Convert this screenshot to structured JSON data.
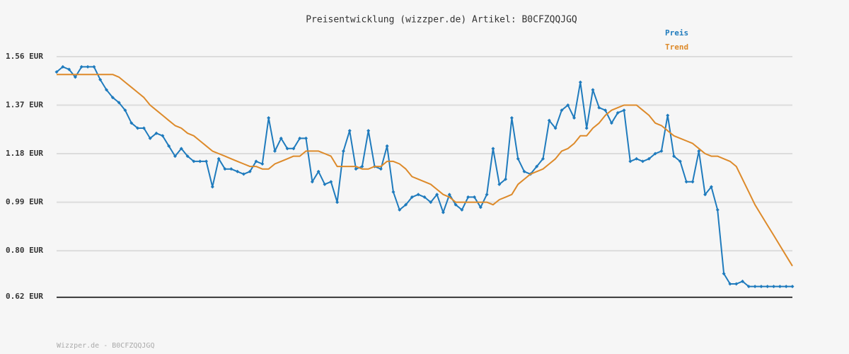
{
  "chart_data": {
    "type": "line",
    "title": "Preisentwicklung (wizzper.de) Artikel: B0CFZQQJGQ",
    "footer": "Wizzper.de - B0CFZQQJGQ",
    "ylim": [
      0.62,
      1.56
    ],
    "yticks": [
      {
        "value": 0.62,
        "label": "0.62 EUR"
      },
      {
        "value": 0.8,
        "label": "0.80 EUR"
      },
      {
        "value": 0.99,
        "label": "0.99 EUR"
      },
      {
        "value": 1.18,
        "label": "1.18 EUR"
      },
      {
        "value": 1.37,
        "label": "1.37 EUR"
      },
      {
        "value": 1.56,
        "label": "1.56 EUR"
      }
    ],
    "grid": true,
    "legend": "top-right",
    "series": [
      {
        "name": "Preis",
        "color": "#1f7bbd",
        "markers": true,
        "values": [
          1.5,
          1.52,
          1.51,
          1.48,
          1.52,
          1.52,
          1.52,
          1.47,
          1.43,
          1.4,
          1.38,
          1.35,
          1.3,
          1.28,
          1.28,
          1.24,
          1.26,
          1.25,
          1.21,
          1.17,
          1.2,
          1.17,
          1.15,
          1.15,
          1.15,
          1.05,
          1.16,
          1.12,
          1.12,
          1.11,
          1.1,
          1.11,
          1.15,
          1.14,
          1.32,
          1.19,
          1.24,
          1.2,
          1.2,
          1.24,
          1.24,
          1.07,
          1.11,
          1.06,
          1.07,
          0.99,
          1.19,
          1.27,
          1.12,
          1.13,
          1.27,
          1.13,
          1.12,
          1.21,
          1.03,
          0.96,
          0.98,
          1.01,
          1.02,
          1.01,
          0.99,
          1.02,
          0.95,
          1.02,
          0.98,
          0.96,
          1.01,
          1.01,
          0.97,
          1.02,
          1.2,
          1.06,
          1.08,
          1.32,
          1.16,
          1.11,
          1.1,
          1.13,
          1.16,
          1.31,
          1.28,
          1.35,
          1.37,
          1.32,
          1.46,
          1.28,
          1.43,
          1.36,
          1.35,
          1.3,
          1.34,
          1.35,
          1.15,
          1.16,
          1.15,
          1.16,
          1.18,
          1.19,
          1.33,
          1.17,
          1.15,
          1.07,
          1.07,
          1.19,
          1.02,
          1.05,
          0.96,
          0.71,
          0.67,
          0.67,
          0.68,
          0.66,
          0.66,
          0.66,
          0.66,
          0.66,
          0.66,
          0.66,
          0.66
        ]
      },
      {
        "name": "Trend",
        "color": "#dd8a2a",
        "markers": false,
        "values": [
          1.49,
          1.49,
          1.49,
          1.49,
          1.49,
          1.49,
          1.49,
          1.49,
          1.49,
          1.49,
          1.48,
          1.46,
          1.44,
          1.42,
          1.4,
          1.37,
          1.35,
          1.33,
          1.31,
          1.29,
          1.28,
          1.26,
          1.25,
          1.23,
          1.21,
          1.19,
          1.18,
          1.17,
          1.16,
          1.15,
          1.14,
          1.13,
          1.13,
          1.12,
          1.12,
          1.14,
          1.15,
          1.16,
          1.17,
          1.17,
          1.19,
          1.19,
          1.19,
          1.18,
          1.17,
          1.13,
          1.13,
          1.13,
          1.13,
          1.12,
          1.12,
          1.13,
          1.13,
          1.15,
          1.15,
          1.14,
          1.12,
          1.09,
          1.08,
          1.07,
          1.06,
          1.04,
          1.02,
          1.01,
          0.99,
          0.99,
          0.99,
          0.99,
          0.99,
          0.99,
          0.98,
          1.0,
          1.01,
          1.02,
          1.06,
          1.08,
          1.1,
          1.11,
          1.12,
          1.14,
          1.16,
          1.19,
          1.2,
          1.22,
          1.25,
          1.25,
          1.28,
          1.3,
          1.33,
          1.35,
          1.36,
          1.37,
          1.37,
          1.37,
          1.35,
          1.33,
          1.3,
          1.29,
          1.27,
          1.25,
          1.24,
          1.23,
          1.22,
          1.2,
          1.18,
          1.17,
          1.17,
          1.16,
          1.15,
          1.13,
          1.08,
          1.03,
          0.98,
          0.94,
          0.9,
          0.86,
          0.82,
          0.78,
          0.74
        ]
      }
    ]
  }
}
